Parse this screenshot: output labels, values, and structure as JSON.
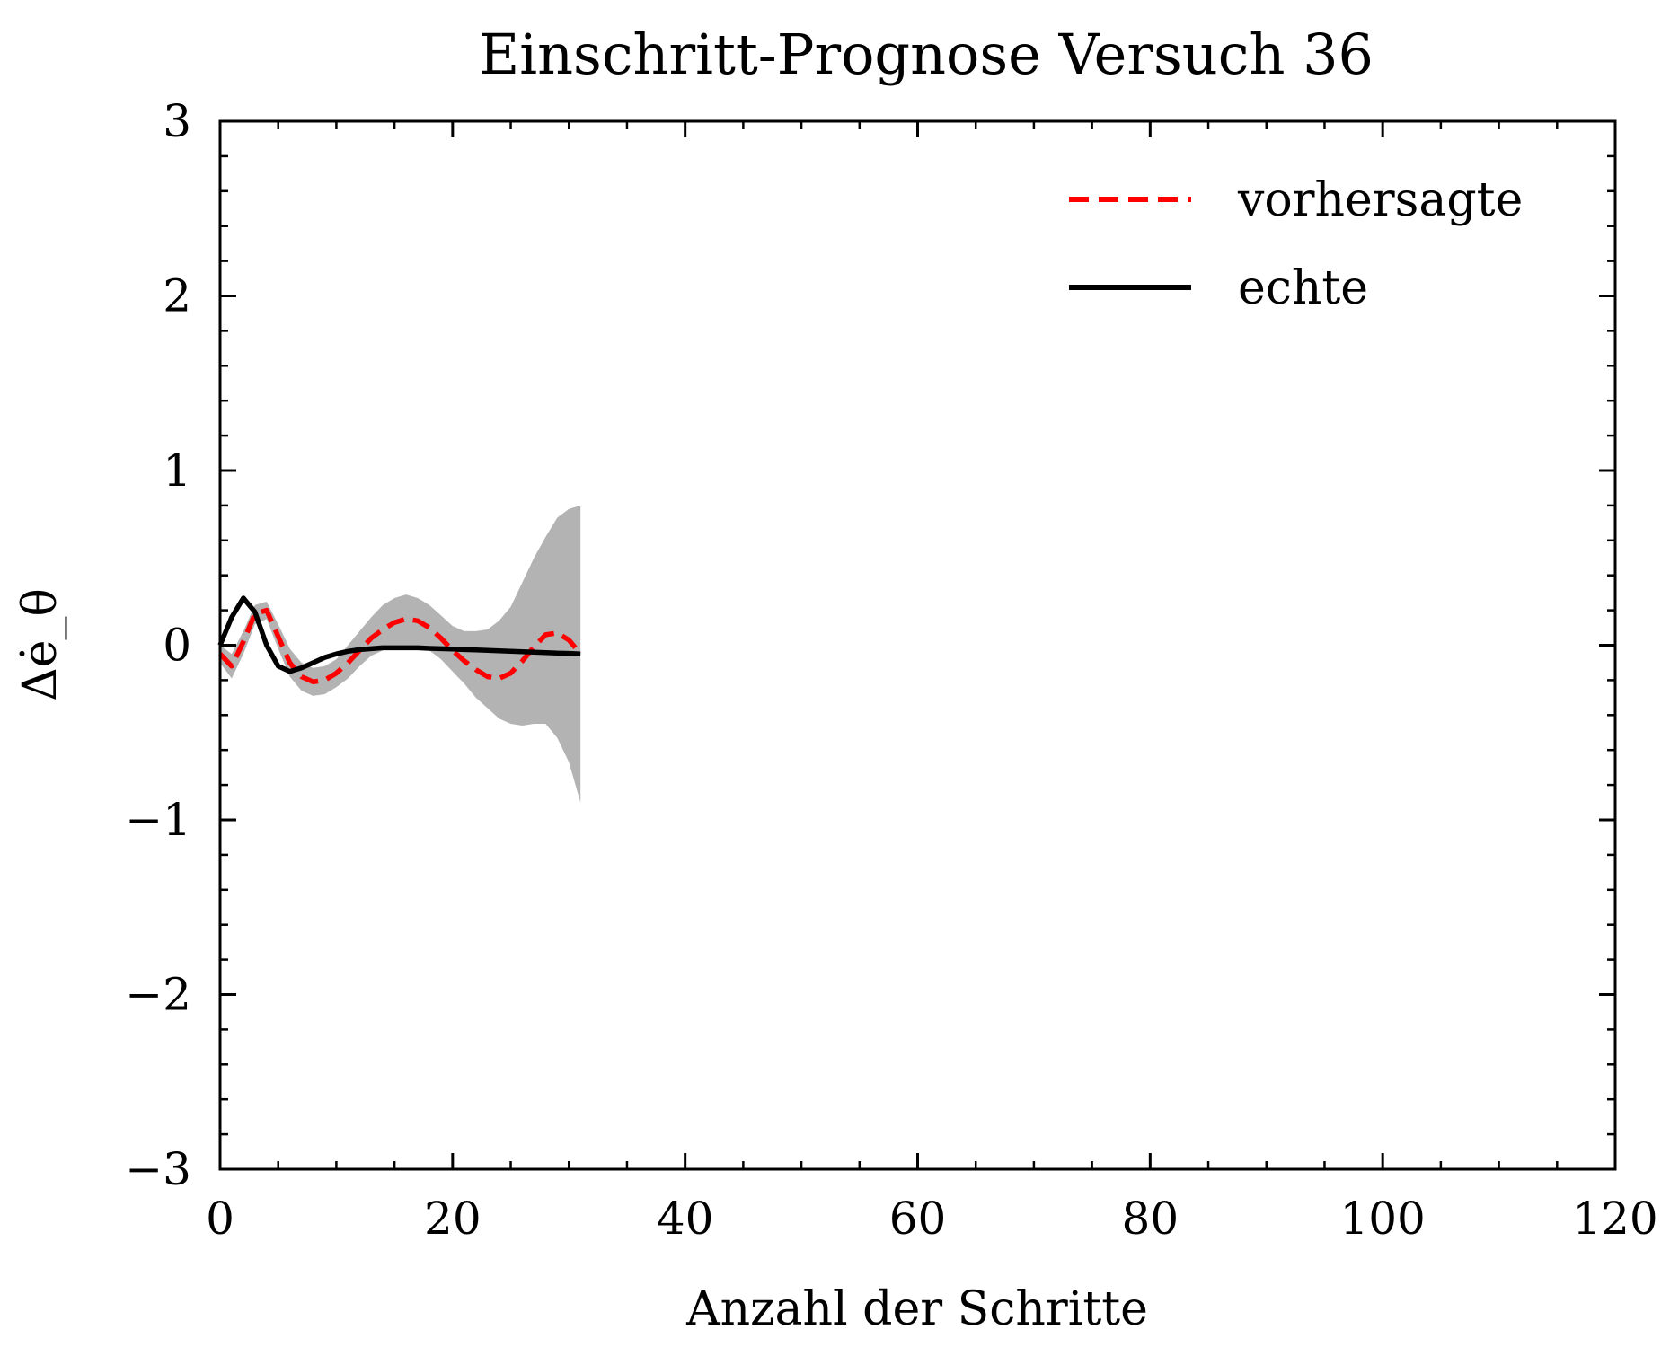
{
  "chart_data": {
    "type": "line",
    "title": "Einschritt-Prognose Versuch 36",
    "xlabel": "Anzahl der Schritte",
    "ylabel": "Δė_θ",
    "xlim": [
      0,
      120
    ],
    "ylim": [
      -3,
      3
    ],
    "xticks": [
      0,
      20,
      40,
      60,
      80,
      100,
      120
    ],
    "yticks": [
      -3,
      -2,
      -1,
      0,
      1,
      2,
      3
    ],
    "xtick_labels": [
      "0",
      "20",
      "40",
      "60",
      "80",
      "100",
      "120"
    ],
    "ytick_labels": [
      "−3",
      "−2",
      "−1",
      "0",
      "1",
      "2",
      "3"
    ],
    "grid": false,
    "legend": "top-right",
    "series": [
      {
        "name": "vorhersagte",
        "style": "dashed",
        "color": "#ff0000",
        "x": [
          0,
          1,
          2,
          3,
          4,
          5,
          6,
          7,
          8,
          9,
          10,
          11,
          12,
          13,
          14,
          15,
          16,
          17,
          18,
          19,
          20,
          21,
          22,
          23,
          24,
          25,
          26,
          27,
          28,
          29,
          30,
          31
        ],
        "y": [
          -0.05,
          -0.12,
          0.02,
          0.18,
          0.2,
          0.05,
          -0.1,
          -0.18,
          -0.21,
          -0.2,
          -0.16,
          -0.1,
          -0.03,
          0.04,
          0.09,
          0.13,
          0.15,
          0.14,
          0.1,
          0.04,
          -0.03,
          -0.09,
          -0.14,
          -0.18,
          -0.19,
          -0.16,
          -0.09,
          -0.01,
          0.06,
          0.07,
          0.03,
          -0.05
        ]
      },
      {
        "name": "echte",
        "style": "solid",
        "color": "#000000",
        "x": [
          0,
          1,
          2,
          3,
          4,
          5,
          6,
          7,
          8,
          9,
          10,
          11,
          12,
          13,
          14,
          15,
          16,
          17,
          18,
          19,
          20,
          21,
          22,
          23,
          24,
          25,
          26,
          27,
          28,
          29,
          30,
          31
        ],
        "y": [
          0.0,
          0.16,
          0.27,
          0.19,
          0.0,
          -0.12,
          -0.15,
          -0.13,
          -0.1,
          -0.07,
          -0.05,
          -0.035,
          -0.025,
          -0.02,
          -0.015,
          -0.015,
          -0.015,
          -0.015,
          -0.018,
          -0.02,
          -0.022,
          -0.025,
          -0.027,
          -0.03,
          -0.032,
          -0.035,
          -0.037,
          -0.04,
          -0.042,
          -0.045,
          -0.047,
          -0.05
        ]
      }
    ],
    "band": {
      "color": "#b3b3b3",
      "x": [
        0,
        1,
        2,
        3,
        4,
        5,
        6,
        7,
        8,
        9,
        10,
        11,
        12,
        13,
        14,
        15,
        16,
        17,
        18,
        19,
        20,
        21,
        22,
        23,
        24,
        25,
        26,
        27,
        28,
        29,
        30,
        31
      ],
      "upper": [
        0.0,
        -0.05,
        0.08,
        0.23,
        0.25,
        0.12,
        -0.02,
        -0.1,
        -0.13,
        -0.12,
        -0.08,
        0.0,
        0.08,
        0.16,
        0.23,
        0.27,
        0.29,
        0.27,
        0.23,
        0.17,
        0.11,
        0.08,
        0.08,
        0.09,
        0.14,
        0.22,
        0.36,
        0.5,
        0.62,
        0.73,
        0.78,
        0.8
      ],
      "lower": [
        -0.1,
        -0.19,
        -0.05,
        0.12,
        0.15,
        -0.02,
        -0.18,
        -0.26,
        -0.29,
        -0.28,
        -0.24,
        -0.19,
        -0.12,
        -0.06,
        -0.03,
        -0.02,
        -0.02,
        -0.02,
        -0.03,
        -0.08,
        -0.15,
        -0.22,
        -0.3,
        -0.36,
        -0.42,
        -0.45,
        -0.46,
        -0.45,
        -0.45,
        -0.53,
        -0.67,
        -0.9
      ]
    }
  }
}
